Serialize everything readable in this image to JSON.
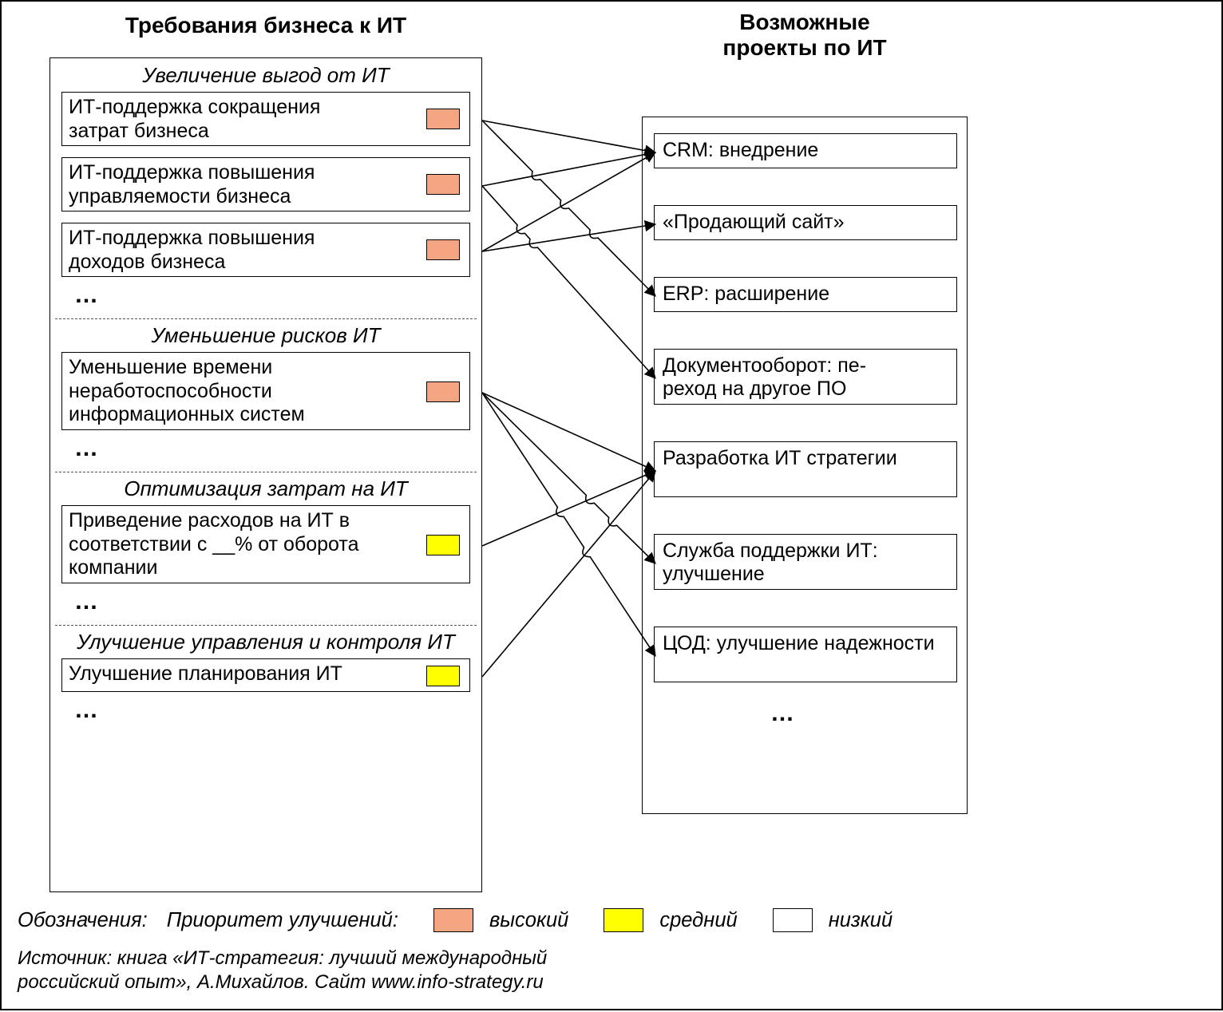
{
  "colors": {
    "high": "#f4a582",
    "medium": "#ffff00",
    "low": "#ffffff",
    "border": "#000000",
    "line": "#000000",
    "sep": "#555555"
  },
  "left_title": "Требования бизнеса к ИТ",
  "right_title": "Возможные\nпроекты по ИТ",
  "sections": [
    {
      "title": "Увеличение выгод от ИТ",
      "items": [
        {
          "text": "ИТ-поддержка сокращения затрат бизнеса",
          "priority": "high"
        },
        {
          "text": "ИТ-поддержка повышения управляемости бизнеса",
          "priority": "high"
        },
        {
          "text": "ИТ-поддержка повышения доходов бизнеса",
          "priority": "high"
        }
      ]
    },
    {
      "title": "Уменьшение рисков ИТ",
      "items": [
        {
          "text": "Уменьшение времени неработоспособности информационных систем",
          "priority": "high"
        }
      ]
    },
    {
      "title": "Оптимизация затрат на ИТ",
      "items": [
        {
          "text": "Приведение расходов на ИТ в соответствии с __% от оборота компании",
          "priority": "medium"
        }
      ]
    },
    {
      "title": "Улучшение управления и контроля ИТ",
      "items": [
        {
          "text": "Улучшение планирования ИТ",
          "priority": "medium"
        }
      ]
    }
  ],
  "projects": [
    "CRM: внедрение",
    "«Продающий сайт»",
    "ERP: расширение",
    "Документооборот: пе-\nреход на другое ПО",
    "Разработка ИТ стратегии",
    "Служба поддержки ИТ: улучшение",
    "ЦОД: улучшение надежности"
  ],
  "ellipsis": "…",
  "legend": {
    "label": "Обозначения:",
    "subtitle": "Приоритет улучшений:",
    "items": [
      {
        "key": "high",
        "label": "высокий"
      },
      {
        "key": "medium",
        "label": "средний"
      },
      {
        "key": "low",
        "label": "низкий"
      }
    ]
  },
  "source": "Источник: книга «ИТ-стратегия: лучший международный\nроссийский опыт», А.Михайлов.   Сайт www.info-strategy.ru",
  "edges": [
    {
      "from": "r0",
      "to": "p0",
      "hops": []
    },
    {
      "from": "r0",
      "to": "p2",
      "hops": [
        "e_r1_p0",
        "e_r2_p0",
        "e_r2_p1"
      ]
    },
    {
      "from": "r1",
      "to": "p0",
      "hops": []
    },
    {
      "from": "r1",
      "to": "p3",
      "hops": [
        "e_r2_p0",
        "e_r2_p1",
        "e_r0_p2"
      ]
    },
    {
      "from": "r2",
      "to": "p0",
      "hops": []
    },
    {
      "from": "r2",
      "to": "p1",
      "hops": []
    },
    {
      "from": "r3",
      "to": "p4",
      "hops": []
    },
    {
      "from": "r3",
      "to": "p5",
      "hops": [
        "e_r4_p4",
        "e_r5_p4"
      ]
    },
    {
      "from": "r3",
      "to": "p6",
      "hops": [
        "e_r4_p4",
        "e_r5_p4",
        "e_r3_p5"
      ]
    },
    {
      "from": "r4",
      "to": "p4",
      "hops": []
    },
    {
      "from": "r5",
      "to": "p4",
      "hops": []
    }
  ]
}
